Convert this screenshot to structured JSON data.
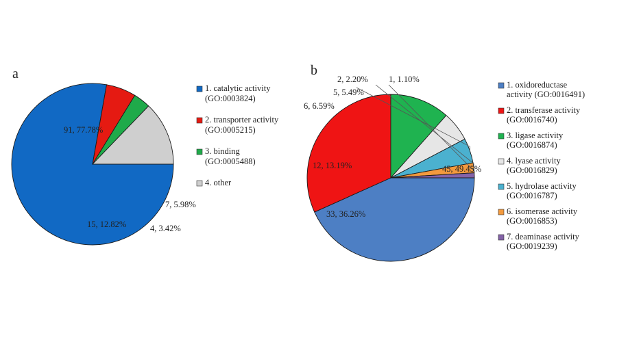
{
  "chart_data": [
    {
      "type": "pie",
      "panel": "a",
      "start_angle_deg": 0,
      "slices": [
        {
          "count": 91,
          "percent": 77.78,
          "label": "91, 77.78%",
          "legend": [
            "1. catalytic activity",
            "(GO:0003824)"
          ],
          "color": "#1169c4"
        },
        {
          "count": 7,
          "percent": 5.98,
          "label": "7, 5.98%",
          "legend": [
            "2. transporter activity",
            "(GO:0005215)"
          ],
          "color": "#e51a12"
        },
        {
          "count": 4,
          "percent": 3.42,
          "label": "4, 3.42%",
          "legend": [
            "3. binding",
            "(GO:0005488)"
          ],
          "color": "#1faa4a"
        },
        {
          "count": 15,
          "percent": 12.82,
          "label": "15, 12.82%",
          "legend": [
            "4. other"
          ],
          "color": "#cfcfcf"
        }
      ]
    },
    {
      "type": "pie",
      "panel": "b",
      "start_angle_deg": 0,
      "slices": [
        {
          "count": 45,
          "percent": 49.45,
          "label": "45, 49.45%",
          "legend": [
            "1. oxidoreductase",
            "activity (GO:0016491)"
          ],
          "color": "#4d7fc4"
        },
        {
          "count": 33,
          "percent": 36.26,
          "label": "33, 36.26%",
          "legend": [
            "2. transferase activity",
            "(GO:0016740)"
          ],
          "color": "#ef1414"
        },
        {
          "count": 12,
          "percent": 13.19,
          "label": "12, 13.19%",
          "legend": [
            "3. ligase activity",
            "(GO:0016874)"
          ],
          "color": "#1fb350"
        },
        {
          "count": 6,
          "percent": 6.59,
          "label": "6, 6.59%",
          "legend": [
            "4. lyase activity",
            "(GO:0016829)"
          ],
          "color": "#e6e6e6"
        },
        {
          "count": 5,
          "percent": 5.49,
          "label": "5, 5.49%",
          "legend": [
            "5. hydrolase activity",
            "(GO:0016787)"
          ],
          "color": "#4bb1cf"
        },
        {
          "count": 2,
          "percent": 2.2,
          "label": "2, 2.20%",
          "legend": [
            "6. isomerase activity",
            "(GO:0016853)"
          ],
          "color": "#f39a3e"
        },
        {
          "count": 1,
          "percent": 1.1,
          "label": "1, 1.10%",
          "legend": [
            "7. deaminase activity",
            "(GO:0019239)"
          ],
          "color": "#8463a8"
        }
      ]
    }
  ]
}
